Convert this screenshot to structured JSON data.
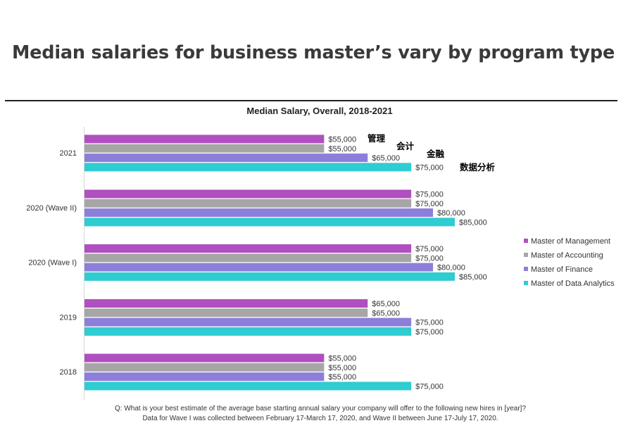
{
  "headline": "Median salaries for business master’s vary by program type",
  "chart_data": {
    "type": "bar",
    "orientation": "horizontal",
    "title": "Median Salary, Overall, 2018-2021",
    "categories": [
      "2021",
      "2020 (Wave II)",
      "2020 (Wave I)",
      "2019",
      "2018"
    ],
    "series": [
      {
        "name": "Master of Management",
        "color": "#b04fbf",
        "values": [
          55000,
          75000,
          75000,
          65000,
          55000
        ]
      },
      {
        "name": "Master of Accounting",
        "color": "#a6a6a6",
        "values": [
          55000,
          75000,
          75000,
          65000,
          55000
        ]
      },
      {
        "name": "Master of Finance",
        "color": "#8c7fdb",
        "values": [
          65000,
          80000,
          80000,
          75000,
          55000
        ]
      },
      {
        "name": "Master of Data Analytics",
        "color": "#2fccd1",
        "values": [
          75000,
          85000,
          85000,
          75000,
          75000
        ]
      }
    ],
    "value_labels": [
      [
        "$55,000",
        "$55,000",
        "$65,000",
        "$75,000"
      ],
      [
        "$75,000",
        "$75,000",
        "$80,000",
        "$85,000"
      ],
      [
        "$75,000",
        "$75,000",
        "$80,000",
        "$85,000"
      ],
      [
        "$65,000",
        "$65,000",
        "$75,000",
        "$75,000"
      ],
      [
        "$55,000",
        "$55,000",
        "$55,000",
        "$75,000"
      ]
    ],
    "annotations": [
      "管理",
      "会计",
      "金融",
      "数据分析"
    ],
    "legend_position": "right",
    "grid": false
  },
  "footnote": {
    "line1": "Q: What is your best estimate of the average base starting annual salary your company will offer to the following new hires in [year]?",
    "line2": "Data for Wave I was collected between February 17-March 17, 2020, and Wave II  between June 17-July 17, 2020."
  }
}
